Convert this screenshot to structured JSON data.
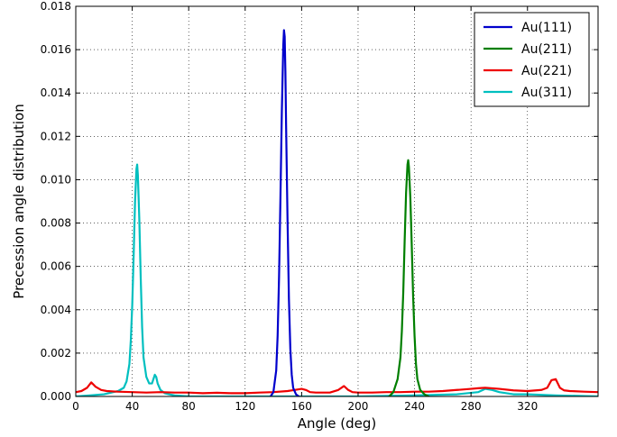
{
  "chart_data": {
    "type": "line",
    "title": "",
    "xlabel": "Angle (deg)",
    "ylabel": "Precession angle distribution",
    "xlim": [
      0,
      370
    ],
    "ylim": [
      0,
      0.018
    ],
    "xticks": [
      0,
      40,
      80,
      120,
      160,
      200,
      240,
      280,
      320
    ],
    "xtick_labels": [
      "0",
      "40",
      "80",
      "120",
      "160",
      "200",
      "240",
      "280",
      "320"
    ],
    "yticks": [
      0,
      0.002,
      0.004,
      0.006,
      0.008,
      0.01,
      0.012,
      0.014,
      0.016,
      0.018
    ],
    "ytick_labels": [
      "0.000",
      "0.002",
      "0.004",
      "0.006",
      "0.008",
      "0.010",
      "0.012",
      "0.014",
      "0.016",
      "0.018"
    ],
    "grid": true,
    "legend_position": "top-right",
    "series": [
      {
        "name": "Au(111)",
        "color": "#0000cc",
        "x": [
          138,
          140,
          142,
          143,
          144,
          145,
          146,
          147,
          147.5,
          148,
          148.5,
          149,
          150,
          151,
          152,
          153,
          154,
          156,
          158
        ],
        "y": [
          0.0,
          0.0002,
          0.0012,
          0.0028,
          0.0055,
          0.0092,
          0.0132,
          0.0162,
          0.0169,
          0.0166,
          0.015,
          0.0125,
          0.0082,
          0.0045,
          0.0022,
          0.001,
          0.0004,
          0.0001,
          0.0
        ]
      },
      {
        "name": "Au(211)",
        "color": "#007f00",
        "x": [
          222,
          225,
          228,
          230,
          231,
          232,
          233,
          234,
          235,
          235.5,
          236,
          237,
          238,
          239,
          240,
          241,
          242,
          244,
          247,
          250
        ],
        "y": [
          0.0,
          0.0002,
          0.0008,
          0.0018,
          0.003,
          0.0048,
          0.0072,
          0.0094,
          0.0107,
          0.0109,
          0.0106,
          0.0092,
          0.007,
          0.0046,
          0.0028,
          0.0015,
          0.0008,
          0.0003,
          0.0001,
          0.0
        ]
      },
      {
        "name": "Au(221)",
        "color": "#ee0000",
        "x": [
          0,
          4,
          8,
          11,
          14,
          18,
          22,
          30,
          40,
          50,
          60,
          70,
          80,
          90,
          100,
          110,
          120,
          130,
          140,
          150,
          155,
          160,
          163,
          166,
          170,
          180,
          186,
          190,
          193,
          196,
          200,
          210,
          220,
          230,
          240,
          250,
          260,
          270,
          280,
          285,
          290,
          300,
          310,
          320,
          330,
          334,
          337,
          340,
          343,
          346,
          350,
          360,
          370
        ],
        "y": [
          0.0002,
          0.00025,
          0.0004,
          0.00065,
          0.00045,
          0.0003,
          0.00025,
          0.00022,
          0.0002,
          0.00018,
          0.0002,
          0.00018,
          0.00018,
          0.00015,
          0.00017,
          0.00015,
          0.00015,
          0.00018,
          0.0002,
          0.00025,
          0.0003,
          0.00035,
          0.0003,
          0.0002,
          0.00018,
          0.00018,
          0.0003,
          0.00048,
          0.0003,
          0.0002,
          0.00018,
          0.00018,
          0.0002,
          0.0002,
          0.00022,
          0.00022,
          0.00025,
          0.0003,
          0.00035,
          0.00038,
          0.0004,
          0.00035,
          0.00028,
          0.00025,
          0.0003,
          0.0004,
          0.00075,
          0.0008,
          0.0004,
          0.00028,
          0.00025,
          0.00022,
          0.0002
        ]
      },
      {
        "name": "Au(311)",
        "color": "#00bfbf",
        "x": [
          0,
          10,
          20,
          30,
          34,
          36,
          38,
          39,
          40,
          41,
          42,
          43,
          43.5,
          44,
          45,
          46,
          47,
          48,
          50,
          52,
          54,
          55,
          56,
          57,
          58,
          60,
          63,
          66,
          70,
          80,
          100,
          130,
          160,
          200,
          240,
          270,
          285,
          290,
          295,
          300,
          310,
          320,
          340,
          370
        ],
        "y": [
          0.0,
          5e-05,
          0.0001,
          0.00025,
          0.0004,
          0.0007,
          0.0015,
          0.0026,
          0.0042,
          0.0065,
          0.009,
          0.0105,
          0.0107,
          0.0102,
          0.0082,
          0.0055,
          0.0032,
          0.0018,
          0.0009,
          0.0006,
          0.0006,
          0.0008,
          0.001,
          0.0009,
          0.0006,
          0.0003,
          0.00015,
          0.0001,
          5e-05,
          0.0,
          0.0,
          0.0,
          0.0,
          0.0,
          5e-05,
          0.0001,
          0.0002,
          0.00035,
          0.0003,
          0.0002,
          0.0001,
          0.0001,
          5e-05,
          0.0
        ]
      }
    ]
  }
}
